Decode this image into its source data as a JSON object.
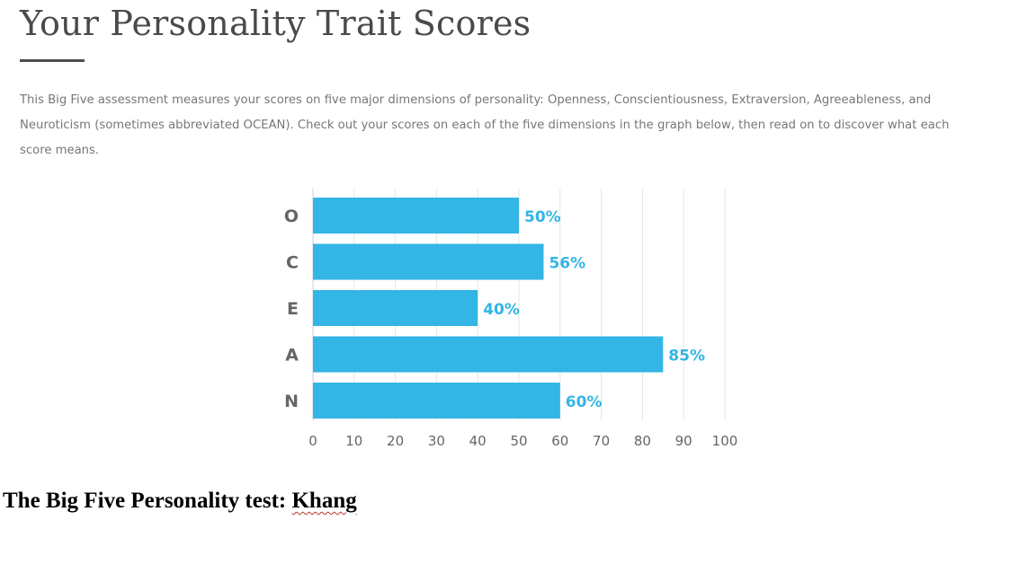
{
  "header": {
    "title": "Your Personality Trait Scores"
  },
  "intro": {
    "text": "This Big Five assessment measures your scores on five major dimensions of personality: Openness, Conscientiousness, Extraversion, Agreeableness, and Neuroticism (sometimes abbreviated OCEAN). Check out your scores on each of the five dimensions in the graph below, then read on to discover what each score means."
  },
  "chart_data": {
    "type": "bar",
    "orientation": "horizontal",
    "categories": [
      "O",
      "C",
      "E",
      "A",
      "N"
    ],
    "values": [
      50,
      56,
      40,
      85,
      60
    ],
    "value_labels": [
      "50%",
      "56%",
      "40%",
      "85%",
      "60%"
    ],
    "xlim": [
      0,
      100
    ],
    "xticks": [
      0,
      10,
      20,
      30,
      40,
      50,
      60,
      70,
      80,
      90,
      100
    ],
    "grid": true,
    "legend": "none",
    "bar_color": "#33b5e5",
    "label_color": "#33b5e5"
  },
  "footer": {
    "caption_prefix": "The Big Five Personality test: ",
    "caption_name": "Khang"
  }
}
